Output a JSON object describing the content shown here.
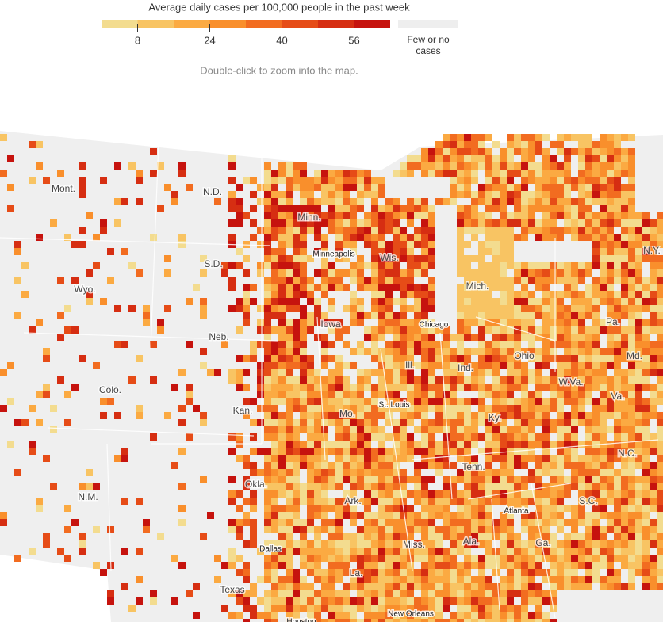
{
  "legend": {
    "title": "Average daily cases per 100,000 people in the past week",
    "range": [
      0,
      64
    ],
    "bins": [
      0,
      8,
      16,
      24,
      32,
      40,
      48,
      56,
      64
    ],
    "colors": [
      "#f3dc8f",
      "#f8c463",
      "#fbaa42",
      "#f98f2c",
      "#f26c20",
      "#e64c17",
      "#d62e12",
      "#c6130e"
    ],
    "ticks": [
      8,
      24,
      40,
      56
    ],
    "none_label": "Few or no cases",
    "none_color": "#eeeeee"
  },
  "note": "Double-click to zoom into the map.",
  "map_labels": [
    {
      "label": "Mont.",
      "kind": "state"
    },
    {
      "label": "N.D.",
      "kind": "state"
    },
    {
      "label": "Minn.",
      "kind": "state"
    },
    {
      "label": "Minneapolis",
      "kind": "city"
    },
    {
      "label": "Wis.",
      "kind": "state"
    },
    {
      "label": "N.Y.",
      "kind": "state"
    },
    {
      "label": "S.D.",
      "kind": "state"
    },
    {
      "label": "Wyo.",
      "kind": "state"
    },
    {
      "label": "Mich.",
      "kind": "state"
    },
    {
      "label": "Chicago",
      "kind": "city"
    },
    {
      "label": "Iowa",
      "kind": "state"
    },
    {
      "label": "Neb.",
      "kind": "state"
    },
    {
      "label": "Pa.",
      "kind": "state"
    },
    {
      "label": "Ohio",
      "kind": "state"
    },
    {
      "label": "Md.",
      "kind": "state"
    },
    {
      "label": "Ill.",
      "kind": "state"
    },
    {
      "label": "Ind.",
      "kind": "state"
    },
    {
      "label": "Colo.",
      "kind": "state"
    },
    {
      "label": "W.Va.",
      "kind": "state"
    },
    {
      "label": "Va.",
      "kind": "state"
    },
    {
      "label": "St. Louis",
      "kind": "city"
    },
    {
      "label": "Kan.",
      "kind": "state"
    },
    {
      "label": "Mo.",
      "kind": "state"
    },
    {
      "label": "Ky.",
      "kind": "state"
    },
    {
      "label": "Tenn.",
      "kind": "state"
    },
    {
      "label": "N.C.",
      "kind": "state"
    },
    {
      "label": "Okla.",
      "kind": "state"
    },
    {
      "label": "N.M.",
      "kind": "state"
    },
    {
      "label": "Ark.",
      "kind": "state"
    },
    {
      "label": "Atlanta",
      "kind": "city"
    },
    {
      "label": "S.C.",
      "kind": "state"
    },
    {
      "label": "Dallas",
      "kind": "city"
    },
    {
      "label": "Miss.",
      "kind": "state"
    },
    {
      "label": "Ala.",
      "kind": "state"
    },
    {
      "label": "Ga.",
      "kind": "state"
    },
    {
      "label": "La.",
      "kind": "state"
    },
    {
      "label": "Texas",
      "kind": "state"
    },
    {
      "label": "New Orleans",
      "kind": "city"
    },
    {
      "label": "Houston",
      "kind": "city"
    }
  ]
}
